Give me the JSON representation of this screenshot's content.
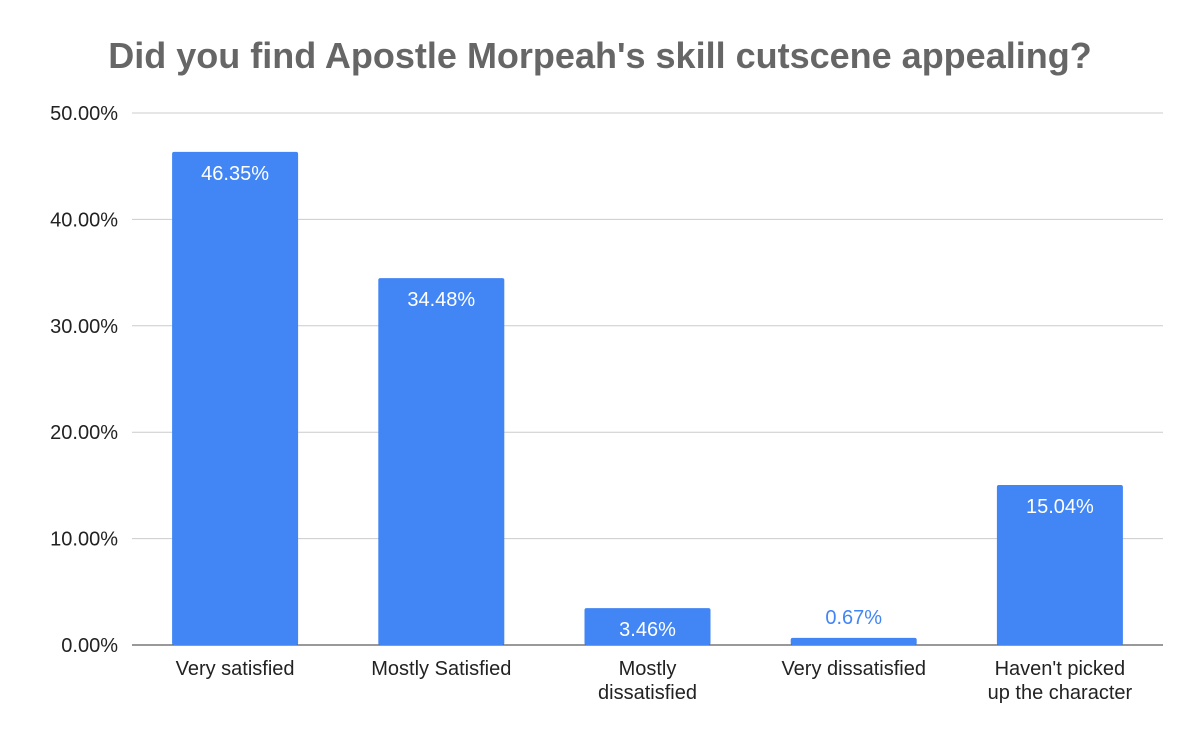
{
  "chart_data": {
    "type": "bar",
    "title": "Did you find Apostle Morpeah's skill cutscene appealing?",
    "xlabel": "",
    "ylabel": "",
    "categories": [
      [
        "Very satisfied"
      ],
      [
        "Mostly Satisfied"
      ],
      [
        "Mostly",
        "dissatisfied"
      ],
      [
        "Very dissatisfied"
      ],
      [
        "Haven't picked",
        "up the character"
      ]
    ],
    "values": [
      46.35,
      34.48,
      3.46,
      0.67,
      15.04
    ],
    "data_labels": [
      "46.35%",
      "34.48%",
      "3.46%",
      "0.67%",
      "15.04%"
    ],
    "ylim": [
      0,
      50
    ],
    "yticks": [
      0,
      10,
      20,
      30,
      40,
      50
    ],
    "ytick_labels": [
      "0.00%",
      "10.00%",
      "20.00%",
      "30.00%",
      "40.00%",
      "50.00%"
    ],
    "grid": true,
    "legend": "none",
    "colors": {
      "bar": "#4285f4",
      "title": "#666666",
      "grid": "#cccccc",
      "axis": "#333333",
      "label_inside": "#ffffff"
    }
  }
}
